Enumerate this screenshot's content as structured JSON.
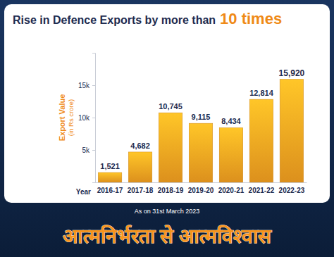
{
  "chart_data": {
    "type": "bar",
    "title": "Rise in Defence Exports by more than 10 times",
    "x_label": "Year",
    "y_label": "Export Value (in Rs crore)",
    "categories": [
      "2016-17",
      "2017-18",
      "2018-19",
      "2019-20",
      "2020-21",
      "2021-22",
      "2022-23"
    ],
    "values": [
      1521,
      4682,
      10745,
      9115,
      8434,
      12814,
      15920
    ],
    "value_labels": [
      "1,521",
      "4,682",
      "10,745",
      "9,115",
      "8,434",
      "12,814",
      "15,920"
    ],
    "color": "#f5a020",
    "ylim": [
      0,
      20000
    ],
    "yticks": [
      {
        "value": 5000,
        "label": "5k"
      },
      {
        "value": 10000,
        "label": "10k"
      },
      {
        "value": 15000,
        "label": "15k"
      }
    ],
    "grid": false,
    "data_labels": true,
    "annotations": [
      "As on 31st March 2023",
      "आत्मनिर्भरता से आत्मविश्वास"
    ]
  }
}
